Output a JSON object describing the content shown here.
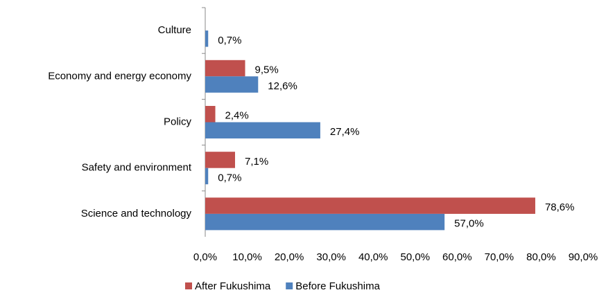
{
  "chart_data": {
    "type": "hbar",
    "categories": [
      "Culture",
      "Economy and energy economy",
      "Policy",
      "Safety and environment",
      "Science and technology"
    ],
    "series": [
      {
        "name": "After Fukushima",
        "color": "#c0504d",
        "values": [
          null,
          9.5,
          2.4,
          7.1,
          78.6
        ],
        "value_labels": [
          null,
          "9,5%",
          "2,4%",
          "7,1%",
          "78,6%"
        ]
      },
      {
        "name": "Before Fukushima",
        "color": "#4f81bd",
        "values": [
          0.7,
          12.6,
          27.4,
          0.7,
          57.0
        ],
        "value_labels": [
          "0,7%",
          "12,6%",
          "27,4%",
          "0,7%",
          "57,0%"
        ]
      }
    ],
    "xlim": [
      0,
      90
    ],
    "xticks": [
      {
        "value": 0,
        "label": "0,0%"
      },
      {
        "value": 10,
        "label": "10,0%"
      },
      {
        "value": 20,
        "label": "20,0%"
      },
      {
        "value": 30,
        "label": "30,0%"
      },
      {
        "value": 40,
        "label": "40,0%"
      },
      {
        "value": 50,
        "label": "50,0%"
      },
      {
        "value": 60,
        "label": "60,0%"
      },
      {
        "value": 70,
        "label": "70,0%"
      },
      {
        "value": 80,
        "label": "80,0%"
      },
      {
        "value": 90,
        "label": "90,0%"
      }
    ],
    "grid": false,
    "legend": "bottom"
  }
}
